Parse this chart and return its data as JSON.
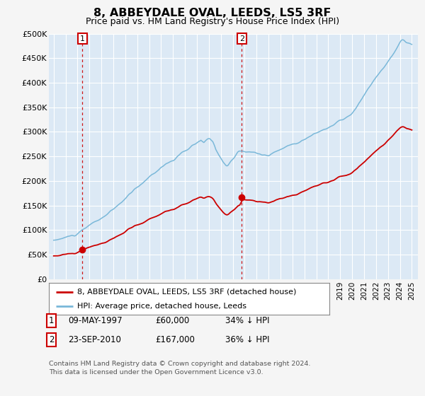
{
  "title": "8, ABBEYDALE OVAL, LEEDS, LS5 3RF",
  "subtitle": "Price paid vs. HM Land Registry's House Price Index (HPI)",
  "ylim": [
    0,
    500000
  ],
  "yticks": [
    0,
    50000,
    100000,
    150000,
    200000,
    250000,
    300000,
    350000,
    400000,
    450000,
    500000
  ],
  "ytick_labels": [
    "£0",
    "£50K",
    "£100K",
    "£150K",
    "£200K",
    "£250K",
    "£300K",
    "£350K",
    "£400K",
    "£450K",
    "£500K"
  ],
  "sale1_year": 1997.37,
  "sale1_price": 60000,
  "sale1_label": "1",
  "sale2_year": 2010.73,
  "sale2_price": 167000,
  "sale2_label": "2",
  "hpi_color": "#7ab8d9",
  "price_color": "#cc0000",
  "vline_color": "#cc0000",
  "plot_bg_color": "#dce9f5",
  "fig_bg_color": "#f5f5f5",
  "grid_color": "#ffffff",
  "legend_address": "8, ABBEYDALE OVAL, LEEDS, LS5 3RF (detached house)",
  "legend_hpi": "HPI: Average price, detached house, Leeds",
  "footnote3": "Contains HM Land Registry data © Crown copyright and database right 2024.",
  "footnote4": "This data is licensed under the Open Government Licence v3.0."
}
